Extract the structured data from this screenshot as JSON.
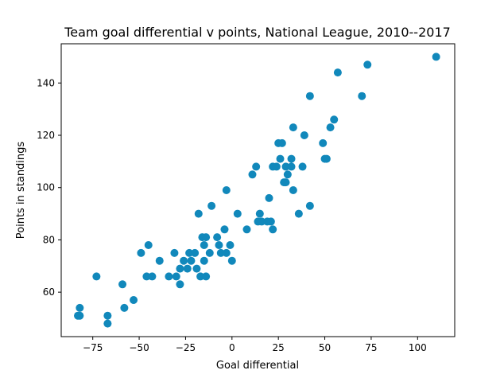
{
  "chart_data": {
    "type": "scatter",
    "title": "Team goal differential v points, National League, 2010--2017",
    "xlabel": "Goal differential",
    "ylabel": "Points in standings",
    "xlim": [
      -92,
      120
    ],
    "ylim": [
      43,
      155
    ],
    "xticks": [
      -75,
      -50,
      -25,
      0,
      25,
      50,
      75,
      100
    ],
    "yticks": [
      60,
      80,
      100,
      120,
      140
    ],
    "xtick_labels": [
      "−75",
      "−50",
      "−25",
      "0",
      "25",
      "50",
      "75",
      "100"
    ],
    "ytick_labels": [
      "60",
      "80",
      "100",
      "120",
      "140"
    ],
    "grid": false,
    "color": "#1188bb",
    "series": [
      {
        "points": [
          [
            -83,
            51
          ],
          [
            -82,
            54
          ],
          [
            -82,
            51
          ],
          [
            -73,
            66
          ],
          [
            -67,
            51
          ],
          [
            -67,
            48
          ],
          [
            -59,
            63
          ],
          [
            -58,
            54
          ],
          [
            -53,
            57
          ],
          [
            -49,
            75
          ],
          [
            -46,
            66
          ],
          [
            -45,
            78
          ],
          [
            -43,
            66
          ],
          [
            -39,
            72
          ],
          [
            -34,
            66
          ],
          [
            -31,
            75
          ],
          [
            -30,
            66
          ],
          [
            -28,
            69
          ],
          [
            -28,
            63
          ],
          [
            -26,
            72
          ],
          [
            -24,
            69
          ],
          [
            -23,
            75
          ],
          [
            -22,
            72
          ],
          [
            -20,
            75
          ],
          [
            -19,
            69
          ],
          [
            -18,
            90
          ],
          [
            -17,
            66
          ],
          [
            -16,
            81
          ],
          [
            -15,
            78
          ],
          [
            -15,
            72
          ],
          [
            -14,
            81
          ],
          [
            -14,
            66
          ],
          [
            -12,
            75
          ],
          [
            -11,
            93
          ],
          [
            -8,
            81
          ],
          [
            -7,
            78
          ],
          [
            -6,
            75
          ],
          [
            -4,
            84
          ],
          [
            -3,
            99
          ],
          [
            -3,
            75
          ],
          [
            -1,
            78
          ],
          [
            0,
            72
          ],
          [
            3,
            90
          ],
          [
            8,
            84
          ],
          [
            11,
            105
          ],
          [
            13,
            108
          ],
          [
            14,
            87
          ],
          [
            15,
            90
          ],
          [
            16,
            87
          ],
          [
            19,
            87
          ],
          [
            20,
            96
          ],
          [
            21,
            87
          ],
          [
            22,
            84
          ],
          [
            22,
            108
          ],
          [
            24,
            108
          ],
          [
            25,
            117
          ],
          [
            26,
            111
          ],
          [
            27,
            117
          ],
          [
            28,
            102
          ],
          [
            29,
            102
          ],
          [
            29,
            108
          ],
          [
            30,
            105
          ],
          [
            32,
            111
          ],
          [
            32,
            108
          ],
          [
            33,
            99
          ],
          [
            33,
            123
          ],
          [
            36,
            90
          ],
          [
            38,
            108
          ],
          [
            39,
            120
          ],
          [
            42,
            135
          ],
          [
            42,
            93
          ],
          [
            49,
            117
          ],
          [
            50,
            111
          ],
          [
            51,
            111
          ],
          [
            53,
            123
          ],
          [
            55,
            126
          ],
          [
            57,
            144
          ],
          [
            70,
            135
          ],
          [
            73,
            147
          ],
          [
            110,
            150
          ]
        ]
      }
    ]
  }
}
